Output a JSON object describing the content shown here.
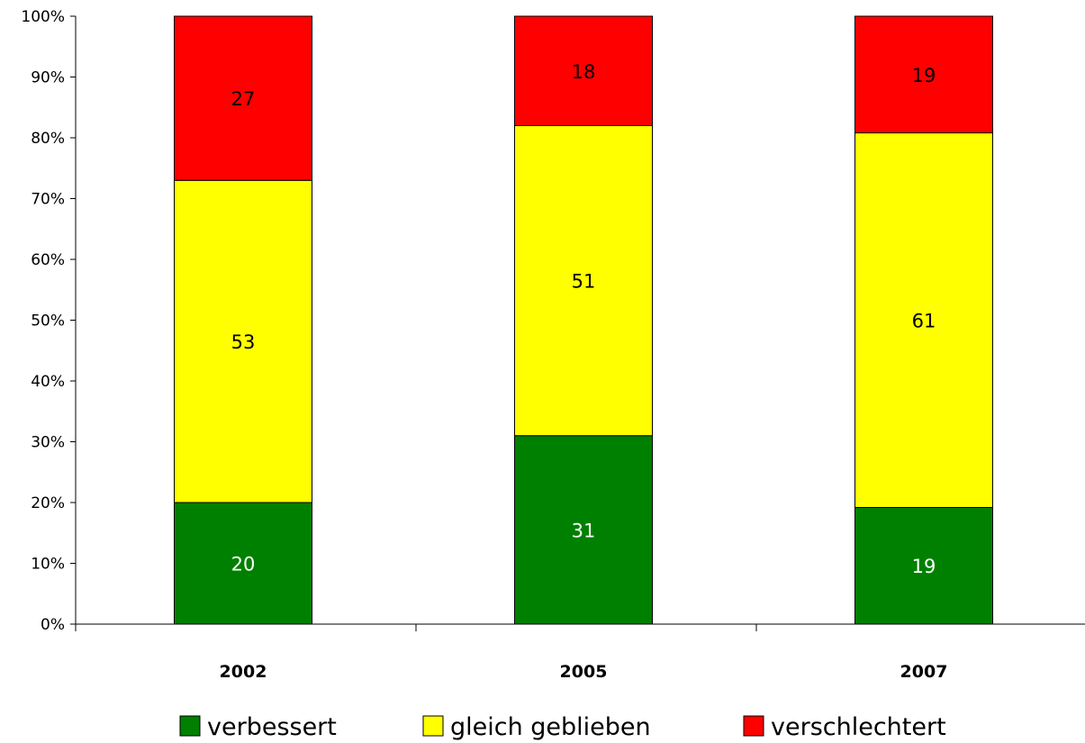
{
  "chart_data": {
    "type": "bar",
    "stacked": true,
    "percent_stacked": true,
    "categories": [
      "2002",
      "2005",
      "2007"
    ],
    "series": [
      {
        "name": "verbessert",
        "values": [
          20,
          31,
          19
        ],
        "color": "#008000",
        "label_color": "#ffffff"
      },
      {
        "name": "gleich geblieben",
        "values": [
          53,
          51,
          61
        ],
        "color": "#ffff00",
        "label_color": "#000000"
      },
      {
        "name": "verschlechtert",
        "values": [
          27,
          18,
          19
        ],
        "color": "#ff0000",
        "label_color": "#000000"
      }
    ],
    "y_ticks": [
      "0%",
      "10%",
      "20%",
      "30%",
      "40%",
      "50%",
      "60%",
      "70%",
      "80%",
      "90%",
      "100%"
    ],
    "ylim": [
      0,
      100
    ],
    "grid": false,
    "legend_position": "bottom"
  }
}
